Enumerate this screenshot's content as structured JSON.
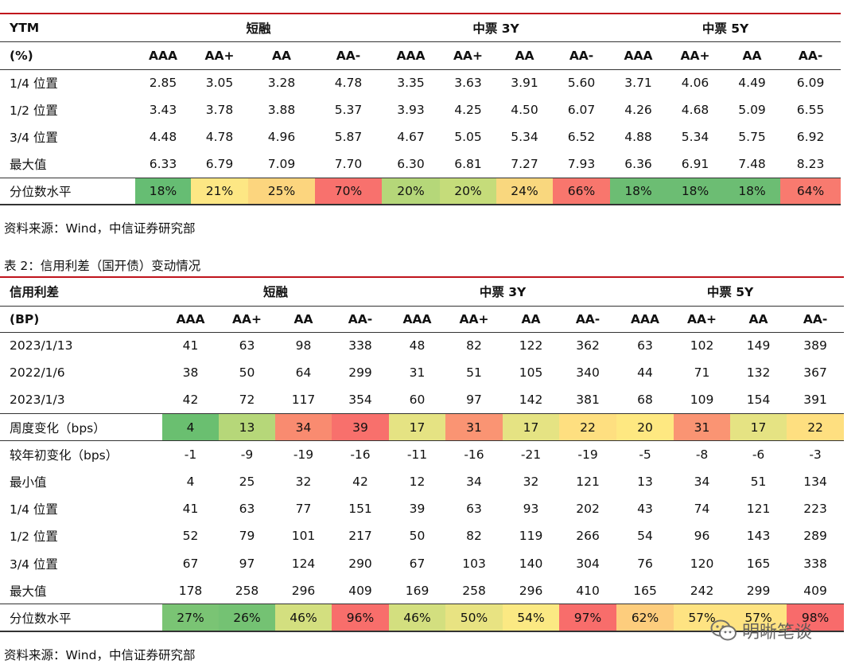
{
  "table1": {
    "group_headers": [
      "YTM",
      "短融",
      "中票 3Y",
      "中票 5Y"
    ],
    "sub_headers": [
      "(%)",
      "AAA",
      "AA+",
      "AA",
      "AA-",
      "AAA",
      "AA+",
      "AA",
      "AA-",
      "AAA",
      "AA+",
      "AA",
      "AA-"
    ],
    "rows": [
      [
        "1/4 位置",
        "2.85",
        "3.05",
        "3.28",
        "4.78",
        "3.35",
        "3.63",
        "3.91",
        "5.60",
        "3.71",
        "4.06",
        "4.49",
        "6.09"
      ],
      [
        "1/2 位置",
        "3.43",
        "3.78",
        "3.88",
        "5.37",
        "3.93",
        "4.25",
        "4.50",
        "6.07",
        "4.26",
        "4.68",
        "5.09",
        "6.55"
      ],
      [
        "3/4 位置",
        "4.48",
        "4.78",
        "4.96",
        "5.87",
        "4.67",
        "5.05",
        "5.34",
        "6.52",
        "4.88",
        "5.34",
        "5.75",
        "6.92"
      ],
      [
        "最大值",
        "6.33",
        "6.79",
        "7.09",
        "7.70",
        "6.30",
        "6.81",
        "7.27",
        "7.93",
        "6.36",
        "6.91",
        "7.48",
        "8.23"
      ]
    ],
    "percentile_row": {
      "label": "分位数水平",
      "values": [
        "18%",
        "21%",
        "25%",
        "70%",
        "20%",
        "20%",
        "24%",
        "66%",
        "18%",
        "18%",
        "18%",
        "64%"
      ],
      "colors": [
        "#66bd73",
        "#fde784",
        "#fcd57e",
        "#f8716d",
        "#b5d779",
        "#c5dc7a",
        "#f9d77e",
        "#f8766d",
        "#6cbd73",
        "#6cbd73",
        "#6cbd73",
        "#f87a6f"
      ]
    }
  },
  "source_note_1": "资料来源：Wind，中信证券研究部",
  "caption_2": "表 2：信用利差（国开债）变动情况",
  "table2": {
    "group_headers": [
      "信用利差",
      "短融",
      "中票 3Y",
      "中票 5Y"
    ],
    "sub_headers": [
      "(BP)",
      "AAA",
      "AA+",
      "AA",
      "AA-",
      "AAA",
      "AA+",
      "AA",
      "AA-",
      "AAA",
      "AA+",
      "AA",
      "AA-"
    ],
    "rows_top": [
      [
        "2023/1/13",
        "41",
        "63",
        "98",
        "338",
        "48",
        "82",
        "122",
        "362",
        "63",
        "102",
        "149",
        "389"
      ],
      [
        "2022/1/6",
        "38",
        "50",
        "64",
        "299",
        "31",
        "51",
        "105",
        "340",
        "44",
        "71",
        "132",
        "367"
      ],
      [
        "2023/1/3",
        "42",
        "72",
        "117",
        "354",
        "60",
        "97",
        "142",
        "381",
        "68",
        "109",
        "154",
        "391"
      ]
    ],
    "weekly_row": {
      "label": "周度变化（bps）",
      "values": [
        "4",
        "13",
        "34",
        "39",
        "17",
        "31",
        "17",
        "22",
        "20",
        "31",
        "17",
        "22"
      ],
      "colors": [
        "#6abf70",
        "#b6d779",
        "#f98b70",
        "#f8706c",
        "#e5e383",
        "#fa9473",
        "#e5e383",
        "#fedf80",
        "#fee881",
        "#fa9473",
        "#e5e383",
        "#fedf80"
      ]
    },
    "rows_bottom": [
      [
        "较年初变化（bps）",
        "-1",
        "-9",
        "-19",
        "-16",
        "-11",
        "-16",
        "-21",
        "-19",
        "-5",
        "-8",
        "-6",
        "-3"
      ],
      [
        "最小值",
        "4",
        "25",
        "32",
        "42",
        "12",
        "34",
        "32",
        "121",
        "13",
        "34",
        "51",
        "134"
      ],
      [
        "1/4 位置",
        "41",
        "63",
        "77",
        "151",
        "39",
        "63",
        "93",
        "202",
        "43",
        "74",
        "121",
        "223"
      ],
      [
        "1/2 位置",
        "52",
        "79",
        "101",
        "217",
        "50",
        "82",
        "119",
        "266",
        "54",
        "96",
        "143",
        "289"
      ],
      [
        "3/4 位置",
        "67",
        "97",
        "124",
        "290",
        "67",
        "103",
        "140",
        "304",
        "76",
        "120",
        "165",
        "338"
      ],
      [
        "最大值",
        "178",
        "258",
        "296",
        "409",
        "169",
        "258",
        "296",
        "410",
        "165",
        "242",
        "299",
        "409"
      ]
    ],
    "percentile_row": {
      "label": "分位数水平",
      "values": [
        "27%",
        "26%",
        "46%",
        "96%",
        "46%",
        "50%",
        "54%",
        "97%",
        "62%",
        "57%",
        "57%",
        "98%"
      ],
      "colors": [
        "#7ac474",
        "#74c273",
        "#d3df7f",
        "#f86e6b",
        "#d3df7f",
        "#e8e382",
        "#fbe983",
        "#f86d6b",
        "#fdcd7d",
        "#fee382",
        "#fee382",
        "#f86b6b"
      ]
    }
  },
  "source_note_2": "资料来源：Wind，中信证券研究部",
  "watermark": {
    "icon": "wechat-icon",
    "text": "明晰笔谈"
  }
}
